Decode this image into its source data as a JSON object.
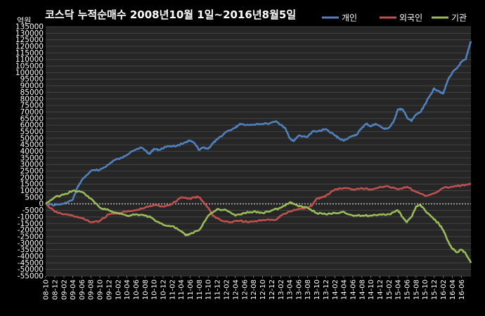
{
  "chart_data": {
    "type": "line",
    "title": "코스닥  누적순매수 2008년10월 1일~2016년8월5일",
    "ylabel": "억원",
    "ylim": [
      -55000,
      135000
    ],
    "ytick_step": 5000,
    "grid": true,
    "legend_position": "top-right",
    "x_ticks": [
      "08-10",
      "08-12",
      "09-02",
      "09-04",
      "09-06",
      "09-08",
      "09-10",
      "09-12",
      "10-02",
      "10-04",
      "10-06",
      "10-08",
      "10-10",
      "10-12",
      "11-02",
      "11-04",
      "11-06",
      "11-08",
      "11-10",
      "11-12",
      "12-02",
      "12-04",
      "12-06",
      "12-08",
      "12-10",
      "12-12",
      "13-02",
      "13-04",
      "13-06",
      "13-08",
      "13-10",
      "13-12",
      "14-02",
      "14-04",
      "14-06",
      "14-08",
      "14-10",
      "14-12",
      "15-02",
      "15-04",
      "15-06",
      "15-08",
      "15-10",
      "15-12",
      "16-02",
      "16-04",
      "16-06"
    ],
    "series": [
      {
        "name": "개인",
        "color": "#4f81bd",
        "x": [
          "2008-10-01",
          "2008-12-01",
          "2009-02-01",
          "2009-04-01",
          "2009-05-01",
          "2009-06-01",
          "2009-08-01",
          "2009-10-01",
          "2009-12-01",
          "2010-01-01",
          "2010-03-01",
          "2010-05-01",
          "2010-07-01",
          "2010-08-01",
          "2010-09-01",
          "2010-10-01",
          "2010-11-01",
          "2011-01-01",
          "2011-03-01",
          "2011-05-01",
          "2011-06-01",
          "2011-07-01",
          "2011-08-01",
          "2011-09-01",
          "2011-10-01",
          "2011-11-01",
          "2011-12-01",
          "2012-02-01",
          "2012-04-01",
          "2012-05-01",
          "2012-07-01",
          "2012-09-01",
          "2012-11-01",
          "2013-01-01",
          "2013-02-01",
          "2013-03-01",
          "2013-04-01",
          "2013-05-01",
          "2013-06-01",
          "2013-08-01",
          "2013-09-01",
          "2013-10-01",
          "2013-12-01",
          "2014-02-01",
          "2014-03-01",
          "2014-04-01",
          "2014-06-01",
          "2014-07-01",
          "2014-08-01",
          "2014-09-01",
          "2014-10-01",
          "2014-11-01",
          "2015-01-01",
          "2015-02-01",
          "2015-03-01",
          "2015-04-01",
          "2015-05-01",
          "2015-06-01",
          "2015-07-01",
          "2015-08-01",
          "2015-09-01",
          "2015-10-01",
          "2015-11-01",
          "2015-12-01",
          "2016-01-01",
          "2016-02-01",
          "2016-03-01",
          "2016-04-01",
          "2016-05-01",
          "2016-06-01",
          "2016-07-01",
          "2016-08-05"
        ],
        "y": [
          0,
          -1000,
          0,
          3000,
          12000,
          18000,
          25000,
          26000,
          30000,
          33000,
          35000,
          40000,
          43000,
          41000,
          38000,
          42000,
          41000,
          44000,
          44000,
          47000,
          48000,
          46000,
          41000,
          43000,
          42000,
          46000,
          49000,
          55000,
          58000,
          61000,
          60000,
          61000,
          61000,
          63000,
          60000,
          58000,
          50000,
          48000,
          52000,
          51000,
          55000,
          55000,
          57000,
          52000,
          50000,
          48000,
          52000,
          53000,
          58000,
          61000,
          59000,
          61000,
          57000,
          58000,
          62000,
          72000,
          72000,
          66000,
          63000,
          68000,
          70000,
          76000,
          82000,
          88000,
          86000,
          84000,
          94000,
          100000,
          103000,
          108000,
          110000,
          124000
        ]
      },
      {
        "name": "외국인",
        "color": "#c0504d",
        "x": [
          "2008-10-01",
          "2008-12-01",
          "2009-02-01",
          "2009-04-01",
          "2009-06-01",
          "2009-08-01",
          "2009-10-01",
          "2009-12-01",
          "2010-02-01",
          "2010-04-01",
          "2010-06-01",
          "2010-08-01",
          "2010-10-01",
          "2010-12-01",
          "2011-02-01",
          "2011-04-01",
          "2011-06-01",
          "2011-07-01",
          "2011-08-01",
          "2011-09-01",
          "2011-10-01",
          "2011-11-01",
          "2012-01-01",
          "2012-03-01",
          "2012-05-01",
          "2012-07-01",
          "2012-09-01",
          "2012-11-01",
          "2013-01-01",
          "2013-02-01",
          "2013-04-01",
          "2013-06-01",
          "2013-08-01",
          "2013-09-01",
          "2013-10-01",
          "2013-11-01",
          "2013-12-01",
          "2014-02-01",
          "2014-04-01",
          "2014-06-01",
          "2014-08-01",
          "2014-10-01",
          "2014-12-01",
          "2015-02-01",
          "2015-04-01",
          "2015-06-01",
          "2015-08-01",
          "2015-10-01",
          "2015-12-01",
          "2016-02-01",
          "2016-04-01",
          "2016-06-01",
          "2016-08-05"
        ],
        "y": [
          0,
          -6000,
          -8000,
          -9000,
          -11000,
          -14000,
          -13000,
          -8000,
          -7000,
          -6000,
          -5000,
          -3000,
          -1000,
          -2000,
          0,
          5000,
          4000,
          5000,
          5000,
          1000,
          -3000,
          -9000,
          -13000,
          -14000,
          -13000,
          -14000,
          -13000,
          -12000,
          -12000,
          -9000,
          -6000,
          -4000,
          -3000,
          -1000,
          4000,
          5000,
          6000,
          11000,
          12000,
          11000,
          12000,
          11000,
          13000,
          13000,
          11000,
          13000,
          9000,
          6000,
          8000,
          12000,
          13000,
          14000,
          15000
        ]
      },
      {
        "name": "기관",
        "color": "#9bbb59",
        "x": [
          "2008-10-01",
          "2008-12-01",
          "2009-02-01",
          "2009-04-01",
          "2009-06-01",
          "2009-08-01",
          "2009-10-01",
          "2009-12-01",
          "2010-02-01",
          "2010-04-01",
          "2010-06-01",
          "2010-08-01",
          "2010-09-01",
          "2010-10-01",
          "2010-12-01",
          "2011-02-01",
          "2011-04-01",
          "2011-05-01",
          "2011-06-01",
          "2011-08-01",
          "2011-10-01",
          "2011-12-01",
          "2012-02-01",
          "2012-04-01",
          "2012-06-01",
          "2012-08-01",
          "2012-10-01",
          "2012-12-01",
          "2013-02-01",
          "2013-04-01",
          "2013-05-01",
          "2013-06-01",
          "2013-08-01",
          "2013-10-01",
          "2013-12-01",
          "2014-02-01",
          "2014-04-01",
          "2014-06-01",
          "2014-08-01",
          "2014-10-01",
          "2014-12-01",
          "2015-02-01",
          "2015-04-01",
          "2015-05-01",
          "2015-06-01",
          "2015-07-01",
          "2015-08-01",
          "2015-09-01",
          "2015-10-01",
          "2015-12-01",
          "2016-01-01",
          "2016-02-01",
          "2016-03-01",
          "2016-04-01",
          "2016-05-01",
          "2016-06-01",
          "2016-07-01",
          "2016-08-05"
        ],
        "y": [
          0,
          5000,
          7000,
          10000,
          9000,
          4000,
          -3000,
          -5000,
          -7000,
          -9000,
          -8000,
          -9000,
          -10000,
          -12000,
          -16000,
          -17000,
          -21000,
          -24000,
          -23000,
          -20000,
          -9000,
          -4000,
          -5000,
          -9000,
          -7000,
          -6000,
          -7000,
          -5000,
          -3000,
          1000,
          0,
          -2000,
          -3000,
          -7000,
          -8000,
          -7000,
          -6000,
          -9000,
          -9000,
          -9000,
          -8000,
          -8000,
          -5000,
          -10000,
          -14000,
          -10000,
          -2000,
          -1000,
          -5000,
          -12000,
          -15000,
          -20000,
          -28000,
          -34000,
          -37000,
          -35000,
          -38000,
          -45000
        ]
      }
    ]
  }
}
